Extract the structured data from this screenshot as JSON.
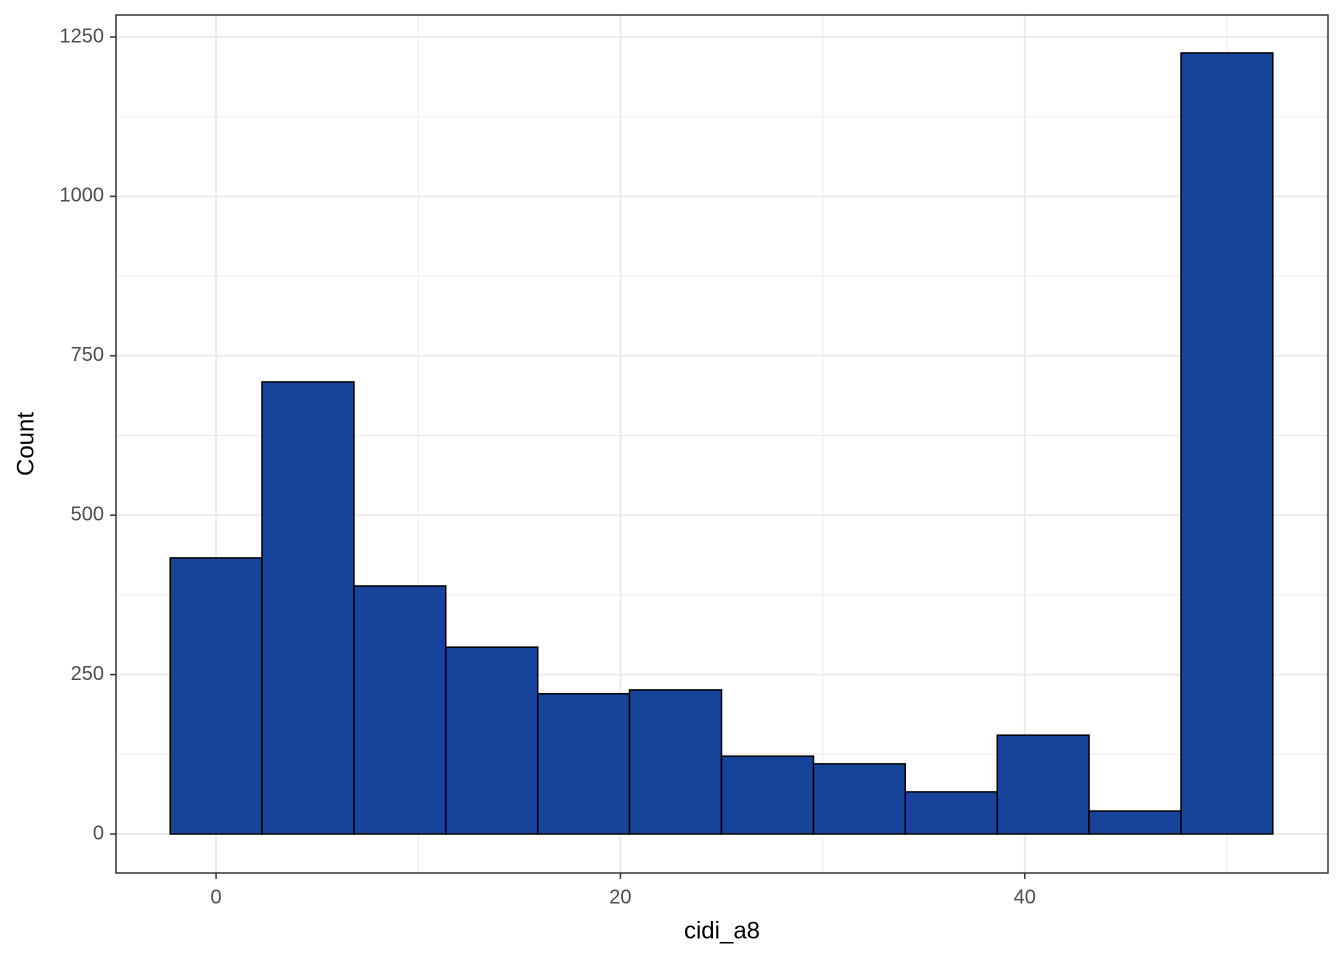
{
  "chart_data": {
    "type": "histogram",
    "x_label": "cidi_a8",
    "y_label": "Count",
    "bins": [
      -2.27,
      2.27,
      6.82,
      11.36,
      15.91,
      20.45,
      25,
      29.55,
      34.09,
      38.64,
      43.18,
      47.73,
      52.27
    ],
    "values": [
      433,
      709,
      389,
      293,
      220,
      226,
      122,
      110,
      66,
      155,
      36,
      1225
    ],
    "color": "#18439a",
    "edge_color": "#000000",
    "xlim": [
      -4.95,
      55.0
    ],
    "xticks": [
      0,
      20,
      40
    ],
    "xminor": [
      10,
      30,
      50
    ],
    "ylim": [
      -61.2,
      1284.5
    ],
    "yticks": [
      0,
      250,
      500,
      750,
      1000,
      1250
    ],
    "yminor": [
      125,
      375,
      625,
      875,
      1125
    ],
    "grid": true
  }
}
